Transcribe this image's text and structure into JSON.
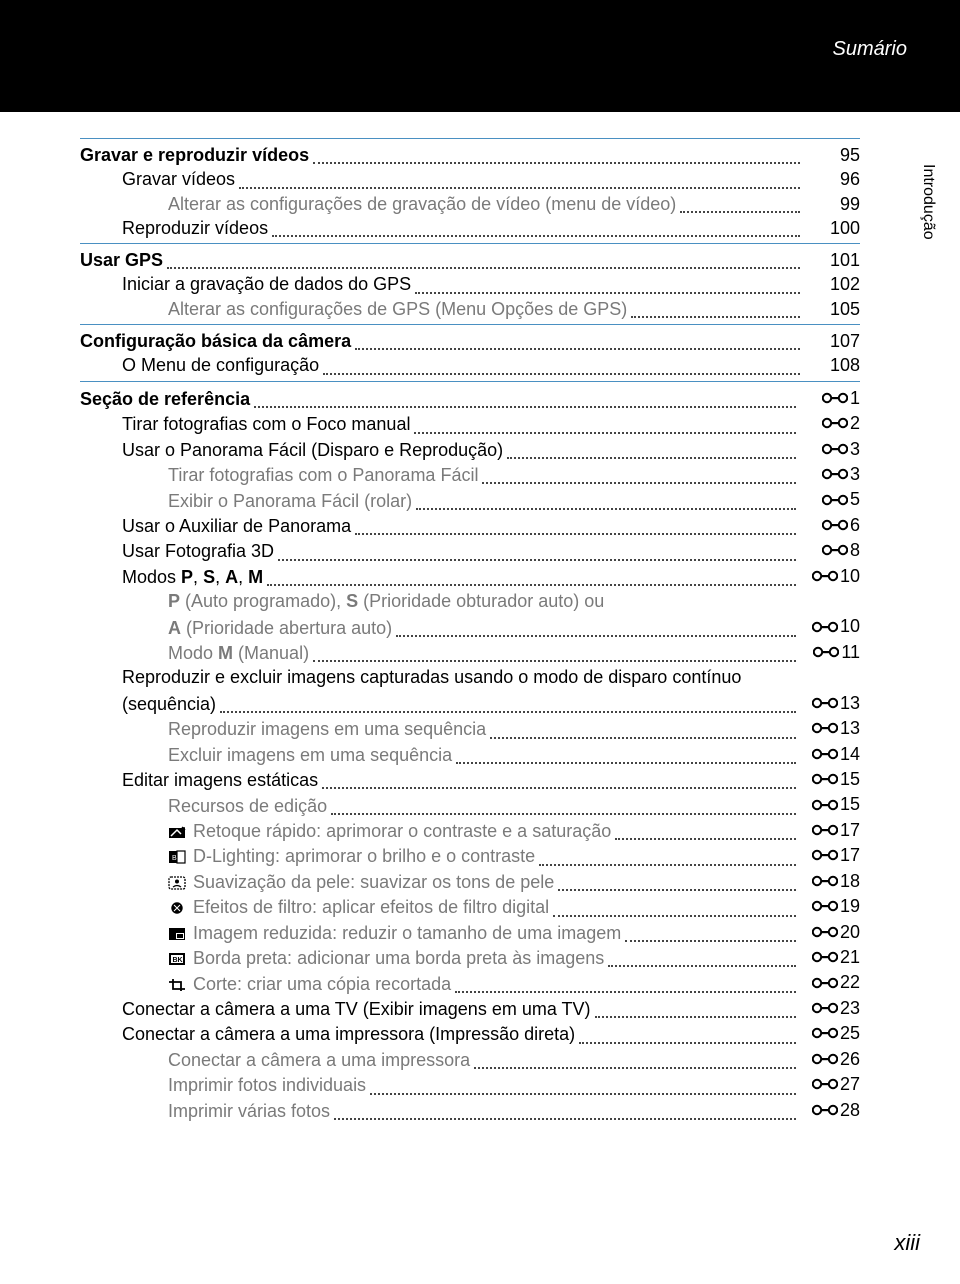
{
  "header": {
    "title": "Sumário"
  },
  "sideTab": "Introdução",
  "pageNumber": "xiii",
  "refIconColor": "#000000",
  "entries": [
    {
      "type": "section",
      "label": "Gravar e reproduzir vídeos",
      "page": "95"
    },
    {
      "type": "sub1",
      "label": "Gravar vídeos",
      "page": "96"
    },
    {
      "type": "sub2",
      "gray": true,
      "label": "Alterar as configurações de gravação de vídeo (menu de vídeo)",
      "page": "99"
    },
    {
      "type": "sub1",
      "label": "Reproduzir vídeos",
      "page": "100"
    },
    {
      "type": "section",
      "label": "Usar GPS",
      "page": "101"
    },
    {
      "type": "sub1",
      "label": "Iniciar a gravação de dados do GPS",
      "page": "102"
    },
    {
      "type": "sub2",
      "gray": true,
      "label": "Alterar as configurações de GPS (Menu Opções de GPS)",
      "page": "105"
    },
    {
      "type": "section",
      "label": "Configuração básica da câmera",
      "page": "107"
    },
    {
      "type": "sub1",
      "label": "O Menu de configuração",
      "page": "108"
    },
    {
      "type": "section",
      "label": "Seção de referência",
      "ref": "1"
    },
    {
      "type": "sub1",
      "label": "Tirar fotografias com o Foco manual",
      "ref": "2"
    },
    {
      "type": "sub1",
      "label": "Usar o Panorama Fácil (Disparo e Reprodução)",
      "ref": "3"
    },
    {
      "type": "sub2",
      "gray": true,
      "label": "Tirar fotografias com o Panorama Fácil",
      "ref": "3"
    },
    {
      "type": "sub2",
      "gray": true,
      "label": "Exibir o Panorama Fácil (rolar)",
      "ref": "5"
    },
    {
      "type": "sub1",
      "label": "Usar o Auxiliar de Panorama",
      "ref": "6"
    },
    {
      "type": "sub1",
      "label": "Usar Fotografia 3D",
      "ref": "8"
    },
    {
      "type": "sub1",
      "labelHtml": "Modos <span class=\"boldletter\">P</span>, <span class=\"boldletter\">S</span>, <span class=\"boldletter\">A</span>, <span class=\"boldletter\">M</span>",
      "ref": "10"
    },
    {
      "type": "sub2-wrap",
      "gray": true,
      "line1Html": "<span class=\"boldletter\">P</span> (Auto programado), <span class=\"boldletter\">S</span> (Prioridade obturador auto) ou",
      "contHtml": "<span class=\"boldletter\">A</span> (Prioridade abertura auto)",
      "ref": "10"
    },
    {
      "type": "sub2",
      "gray": true,
      "labelHtml": "Modo <span class=\"boldletter\">M</span> (Manual)",
      "ref": "11"
    },
    {
      "type": "sub1-wrap",
      "line1": "Reproduzir e excluir imagens capturadas usando o modo de disparo contínuo",
      "cont": "(sequência)",
      "ref": "13"
    },
    {
      "type": "sub2",
      "gray": true,
      "label": "Reproduzir imagens em uma sequência",
      "ref": "13"
    },
    {
      "type": "sub2",
      "gray": true,
      "label": "Excluir imagens em uma sequência",
      "ref": "14"
    },
    {
      "type": "sub1",
      "label": "Editar imagens estáticas",
      "ref": "15"
    },
    {
      "type": "sub2",
      "gray": true,
      "label": "Recursos de edição",
      "ref": "15"
    },
    {
      "type": "sub2",
      "gray": true,
      "icon": "retouch",
      "label": "Retoque rápido: aprimorar o contraste e a saturação",
      "ref": "17"
    },
    {
      "type": "sub2",
      "gray": true,
      "icon": "dlight",
      "label": "D-Lighting: aprimorar o brilho e o contraste",
      "ref": "17"
    },
    {
      "type": "sub2",
      "gray": true,
      "icon": "skin",
      "label": "Suavização da pele: suavizar os tons de pele",
      "ref": "18"
    },
    {
      "type": "sub2",
      "gray": true,
      "icon": "filter",
      "label": "Efeitos de filtro: aplicar efeitos de filtro digital",
      "ref": "19"
    },
    {
      "type": "sub2",
      "gray": true,
      "icon": "resize",
      "label": "Imagem reduzida: reduzir o tamanho de uma imagem",
      "ref": "20"
    },
    {
      "type": "sub2",
      "gray": true,
      "icon": "border",
      "label": "Borda preta: adicionar uma borda preta às imagens",
      "ref": "21"
    },
    {
      "type": "sub2",
      "gray": true,
      "icon": "crop",
      "label": "Corte: criar uma cópia recortada",
      "ref": "22"
    },
    {
      "type": "sub1",
      "label": "Conectar a câmera a uma TV (Exibir imagens em uma TV)",
      "ref": "23"
    },
    {
      "type": "sub1",
      "label": "Conectar a câmera a uma impressora (Impressão direta)",
      "ref": "25"
    },
    {
      "type": "sub2",
      "gray": true,
      "label": "Conectar a câmera a uma impressora",
      "ref": "26"
    },
    {
      "type": "sub2",
      "gray": true,
      "label": "Imprimir fotos individuais",
      "ref": "27"
    },
    {
      "type": "sub2",
      "gray": true,
      "label": "Imprimir várias fotos",
      "ref": "28"
    }
  ]
}
